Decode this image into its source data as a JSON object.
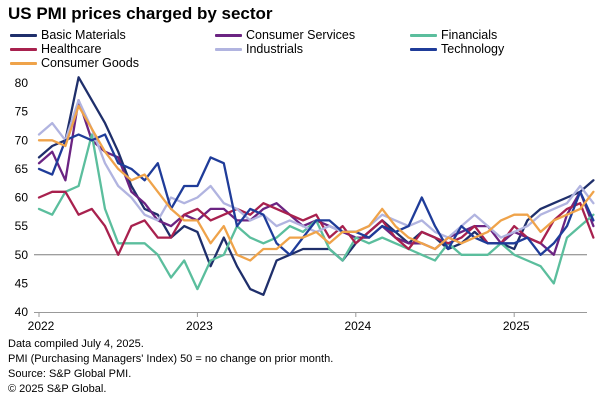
{
  "chart_data": {
    "type": "line",
    "title": "US PMI prices charged by sector",
    "ylim": [
      40,
      80
    ],
    "yticks": [
      40,
      45,
      50,
      55,
      60,
      65,
      70,
      75,
      80
    ],
    "x_year_labels": [
      "2022",
      "2023",
      "2024",
      "2025"
    ],
    "reference_line": 50,
    "x_start": "2022-01",
    "legend_position": "top",
    "series": [
      {
        "name": "Basic Materials",
        "color": "#1f2f6b",
        "values": [
          67,
          69,
          70,
          81,
          77,
          73,
          68,
          62,
          58,
          57,
          53,
          55,
          54,
          48,
          53,
          48,
          44,
          43,
          49,
          50,
          51,
          51,
          51,
          49,
          52,
          54,
          56,
          54,
          52,
          54,
          53,
          51,
          52,
          54,
          52,
          52,
          51,
          56,
          58,
          59,
          60,
          61,
          63
        ]
      },
      {
        "name": "Consumer Services",
        "color": "#6b2482",
        "values": [
          66,
          68,
          63,
          77,
          70,
          68,
          67,
          61,
          59,
          56,
          55,
          57,
          56,
          58,
          58,
          56,
          56,
          58,
          59,
          57,
          55,
          56,
          55,
          54,
          53,
          53,
          55,
          53,
          52,
          52,
          51,
          53,
          54,
          55,
          55,
          52,
          54,
          53,
          52,
          50,
          57,
          61,
          55
        ]
      },
      {
        "name": "Financials",
        "color": "#5bbe9d",
        "values": [
          58,
          57,
          61,
          62,
          71,
          58,
          52,
          52,
          52,
          50,
          46,
          49,
          44,
          49,
          50,
          55,
          53,
          52,
          53,
          55,
          54,
          56,
          51,
          49,
          53,
          52,
          53,
          52,
          51,
          50,
          49,
          52,
          50,
          50,
          50,
          52,
          50,
          49,
          48,
          45,
          53,
          55,
          57
        ]
      },
      {
        "name": "Healthcare",
        "color": "#a8214e",
        "values": [
          60,
          61,
          61,
          57,
          58,
          55,
          50,
          55,
          56,
          53,
          53,
          57,
          58,
          56,
          57,
          58,
          57,
          59,
          58,
          57,
          56,
          57,
          53,
          55,
          52,
          54,
          56,
          53,
          51,
          54,
          53,
          52,
          53,
          55,
          52,
          52,
          55,
          53,
          52,
          56,
          58,
          59,
          53
        ]
      },
      {
        "name": "Industrials",
        "color": "#b1b4e0",
        "values": [
          71,
          73,
          70,
          77,
          72,
          66,
          62,
          60,
          57,
          56,
          60,
          59,
          60,
          62,
          59,
          58,
          56,
          57,
          55,
          56,
          55,
          54,
          55,
          54,
          54,
          55,
          57,
          56,
          55,
          56,
          54,
          53,
          55,
          57,
          55,
          53,
          54,
          55,
          57,
          58,
          59,
          62,
          59
        ]
      },
      {
        "name": "Technology",
        "color": "#1f3c99",
        "values": [
          65,
          64,
          70,
          71,
          70,
          71,
          66,
          65,
          63,
          66,
          58,
          62,
          62,
          67,
          66,
          55,
          58,
          57,
          52,
          50,
          53,
          56,
          56,
          54,
          54,
          53,
          55,
          54,
          55,
          60,
          55,
          51,
          55,
          53,
          52,
          52,
          52,
          53,
          50,
          52,
          55,
          61,
          56
        ]
      },
      {
        "name": "Consumer Goods",
        "color": "#efa34a",
        "values": [
          70,
          70,
          69,
          76,
          72,
          68,
          65,
          63,
          64,
          61,
          58,
          56,
          56,
          52,
          55,
          50,
          49,
          51,
          51,
          53,
          53,
          54,
          52,
          54,
          54,
          55,
          58,
          55,
          53,
          52,
          51,
          53,
          52,
          53,
          54,
          56,
          57,
          57,
          54,
          56,
          57,
          58,
          61
        ]
      }
    ]
  },
  "notes": {
    "line1": "Data compiled July 4, 2025.",
    "line2": "PMI (Purchasing Managers' Index) 50 =  no change on prior month.",
    "line3": "Source: S&P Global PMI.",
    "line4": "© 2025 S&P Global."
  }
}
